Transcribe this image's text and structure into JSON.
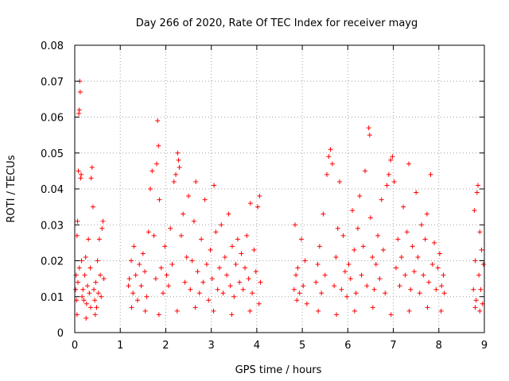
{
  "chart_data": {
    "type": "scatter",
    "title": "Day 266 of 2020, Rate Of TEC Index for receiver mayg",
    "xlabel": "GPS time / hours",
    "ylabel": "ROTI / TECUs",
    "xlim": [
      0,
      9
    ],
    "ylim": [
      0,
      0.08
    ],
    "x_ticks": [
      "0",
      "1",
      "2",
      "3",
      "4",
      "5",
      "6",
      "7",
      "8",
      "9"
    ],
    "y_ticks": [
      "0",
      "0.01",
      "0.02",
      "0.03",
      "0.04",
      "0.05",
      "0.06",
      "0.07",
      "0.08"
    ],
    "grid": true,
    "marker": "+",
    "color": "#ff0000",
    "series": [
      {
        "name": "ROTI",
        "points": [
          [
            0.02,
            0.012
          ],
          [
            0.03,
            0.016
          ],
          [
            0.04,
            0.009
          ],
          [
            0.05,
            0.027
          ],
          [
            0.06,
            0.031
          ],
          [
            0.07,
            0.014
          ],
          [
            0.08,
            0.045
          ],
          [
            0.09,
            0.061
          ],
          [
            0.1,
            0.062
          ],
          [
            0.11,
            0.07
          ],
          [
            0.12,
            0.067
          ],
          [
            0.13,
            0.043
          ],
          [
            0.14,
            0.044
          ],
          [
            0.15,
            0.02
          ],
          [
            0.16,
            0.01
          ],
          [
            0.18,
            0.012
          ],
          [
            0.2,
            0.009
          ],
          [
            0.22,
            0.016
          ],
          [
            0.24,
            0.021
          ],
          [
            0.26,
            0.008
          ],
          [
            0.28,
            0.013
          ],
          [
            0.3,
            0.026
          ],
          [
            0.32,
            0.011
          ],
          [
            0.34,
            0.018
          ],
          [
            0.36,
            0.043
          ],
          [
            0.38,
            0.046
          ],
          [
            0.4,
            0.035
          ],
          [
            0.42,
            0.012
          ],
          [
            0.44,
            0.009
          ],
          [
            0.46,
            0.014
          ],
          [
            0.48,
            0.007
          ],
          [
            0.5,
            0.02
          ],
          [
            0.52,
            0.011
          ],
          [
            0.54,
            0.026
          ],
          [
            0.56,
            0.016
          ],
          [
            0.58,
            0.01
          ],
          [
            0.6,
            0.029
          ],
          [
            0.62,
            0.031
          ],
          [
            0.64,
            0.015
          ],
          [
            0.05,
            0.005
          ],
          [
            0.1,
            0.018
          ],
          [
            0.25,
            0.004
          ],
          [
            0.35,
            0.007
          ],
          [
            0.45,
            0.005
          ],
          [
            1.18,
            0.013
          ],
          [
            1.2,
            0.015
          ],
          [
            1.24,
            0.02
          ],
          [
            1.28,
            0.011
          ],
          [
            1.3,
            0.024
          ],
          [
            1.34,
            0.016
          ],
          [
            1.38,
            0.009
          ],
          [
            1.42,
            0.019
          ],
          [
            1.46,
            0.013
          ],
          [
            1.5,
            0.022
          ],
          [
            1.54,
            0.017
          ],
          [
            1.58,
            0.01
          ],
          [
            1.62,
            0.028
          ],
          [
            1.66,
            0.04
          ],
          [
            1.7,
            0.045
          ],
          [
            1.74,
            0.027
          ],
          [
            1.78,
            0.015
          ],
          [
            1.8,
            0.047
          ],
          [
            1.82,
            0.059
          ],
          [
            1.84,
            0.052
          ],
          [
            1.86,
            0.037
          ],
          [
            1.9,
            0.018
          ],
          [
            1.94,
            0.011
          ],
          [
            1.98,
            0.024
          ],
          [
            2.02,
            0.016
          ],
          [
            2.06,
            0.013
          ],
          [
            2.1,
            0.029
          ],
          [
            2.14,
            0.019
          ],
          [
            2.18,
            0.042
          ],
          [
            2.22,
            0.044
          ],
          [
            2.26,
            0.05
          ],
          [
            2.28,
            0.048
          ],
          [
            2.3,
            0.046
          ],
          [
            2.34,
            0.027
          ],
          [
            2.38,
            0.033
          ],
          [
            2.42,
            0.014
          ],
          [
            2.46,
            0.021
          ],
          [
            2.5,
            0.038
          ],
          [
            2.54,
            0.012
          ],
          [
            2.58,
            0.02
          ],
          [
            2.62,
            0.031
          ],
          [
            2.66,
            0.042
          ],
          [
            2.7,
            0.017
          ],
          [
            2.74,
            0.011
          ],
          [
            2.78,
            0.026
          ],
          [
            2.82,
            0.014
          ],
          [
            2.86,
            0.037
          ],
          [
            2.9,
            0.019
          ],
          [
            2.94,
            0.009
          ],
          [
            2.98,
            0.023
          ],
          [
            3.02,
            0.015
          ],
          [
            3.06,
            0.041
          ],
          [
            3.1,
            0.028
          ],
          [
            3.14,
            0.012
          ],
          [
            3.18,
            0.018
          ],
          [
            3.22,
            0.03
          ],
          [
            3.26,
            0.011
          ],
          [
            3.3,
            0.021
          ],
          [
            3.34,
            0.016
          ],
          [
            3.38,
            0.033
          ],
          [
            3.42,
            0.013
          ],
          [
            3.46,
            0.024
          ],
          [
            3.5,
            0.01
          ],
          [
            3.54,
            0.019
          ],
          [
            3.58,
            0.026
          ],
          [
            3.62,
            0.014
          ],
          [
            3.66,
            0.022
          ],
          [
            3.7,
            0.012
          ],
          [
            3.74,
            0.018
          ],
          [
            3.78,
            0.027
          ],
          [
            3.82,
            0.015
          ],
          [
            3.86,
            0.036
          ],
          [
            3.9,
            0.011
          ],
          [
            3.94,
            0.023
          ],
          [
            3.98,
            0.017
          ],
          [
            4.02,
            0.035
          ],
          [
            4.06,
            0.038
          ],
          [
            4.08,
            0.014
          ],
          [
            1.25,
            0.007
          ],
          [
            1.55,
            0.006
          ],
          [
            1.85,
            0.005
          ],
          [
            2.25,
            0.006
          ],
          [
            2.65,
            0.007
          ],
          [
            3.05,
            0.006
          ],
          [
            3.45,
            0.005
          ],
          [
            3.85,
            0.006
          ],
          [
            4.05,
            0.008
          ],
          [
            4.82,
            0.012
          ],
          [
            4.84,
            0.03
          ],
          [
            4.86,
            0.016
          ],
          [
            4.88,
            0.009
          ],
          [
            4.9,
            0.018
          ],
          [
            4.94,
            0.011
          ],
          [
            4.98,
            0.026
          ],
          [
            5.02,
            0.013
          ],
          [
            5.06,
            0.02
          ],
          [
            5.1,
            0.008
          ],
          [
            5.3,
            0.014
          ],
          [
            5.34,
            0.019
          ],
          [
            5.38,
            0.024
          ],
          [
            5.42,
            0.011
          ],
          [
            5.46,
            0.033
          ],
          [
            5.5,
            0.016
          ],
          [
            5.54,
            0.044
          ],
          [
            5.58,
            0.049
          ],
          [
            5.62,
            0.051
          ],
          [
            5.66,
            0.047
          ],
          [
            5.7,
            0.013
          ],
          [
            5.74,
            0.021
          ],
          [
            5.78,
            0.029
          ],
          [
            5.82,
            0.042
          ],
          [
            5.86,
            0.012
          ],
          [
            5.9,
            0.027
          ],
          [
            5.94,
            0.017
          ],
          [
            5.98,
            0.01
          ],
          [
            6.02,
            0.019
          ],
          [
            6.06,
            0.015
          ],
          [
            6.1,
            0.034
          ],
          [
            6.14,
            0.023
          ],
          [
            6.18,
            0.011
          ],
          [
            6.22,
            0.029
          ],
          [
            6.26,
            0.038
          ],
          [
            6.3,
            0.016
          ],
          [
            6.34,
            0.024
          ],
          [
            6.38,
            0.045
          ],
          [
            6.42,
            0.013
          ],
          [
            6.46,
            0.057
          ],
          [
            6.48,
            0.055
          ],
          [
            6.5,
            0.032
          ],
          [
            6.54,
            0.021
          ],
          [
            6.58,
            0.012
          ],
          [
            6.62,
            0.019
          ],
          [
            6.66,
            0.027
          ],
          [
            6.7,
            0.015
          ],
          [
            6.74,
            0.037
          ],
          [
            6.78,
            0.023
          ],
          [
            6.82,
            0.011
          ],
          [
            6.86,
            0.041
          ],
          [
            6.9,
            0.044
          ],
          [
            6.94,
            0.048
          ],
          [
            6.98,
            0.049
          ],
          [
            7.02,
            0.042
          ],
          [
            7.06,
            0.018
          ],
          [
            7.1,
            0.026
          ],
          [
            7.14,
            0.013
          ],
          [
            7.18,
            0.021
          ],
          [
            7.22,
            0.035
          ],
          [
            7.26,
            0.016
          ],
          [
            7.3,
            0.028
          ],
          [
            7.34,
            0.047
          ],
          [
            7.38,
            0.012
          ],
          [
            7.42,
            0.024
          ],
          [
            7.46,
            0.017
          ],
          [
            7.5,
            0.039
          ],
          [
            7.54,
            0.021
          ],
          [
            7.58,
            0.011
          ],
          [
            7.62,
            0.03
          ],
          [
            7.66,
            0.016
          ],
          [
            7.7,
            0.026
          ],
          [
            7.74,
            0.033
          ],
          [
            7.78,
            0.014
          ],
          [
            7.82,
            0.044
          ],
          [
            7.86,
            0.019
          ],
          [
            7.9,
            0.025
          ],
          [
            7.94,
            0.012
          ],
          [
            7.98,
            0.018
          ],
          [
            8.02,
            0.022
          ],
          [
            8.06,
            0.013
          ],
          [
            8.1,
            0.016
          ],
          [
            8.12,
            0.011
          ],
          [
            5.35,
            0.006
          ],
          [
            5.75,
            0.005
          ],
          [
            6.15,
            0.006
          ],
          [
            6.55,
            0.007
          ],
          [
            6.95,
            0.005
          ],
          [
            7.35,
            0.006
          ],
          [
            7.75,
            0.007
          ],
          [
            8.05,
            0.006
          ],
          [
            8.76,
            0.012
          ],
          [
            8.78,
            0.034
          ],
          [
            8.8,
            0.02
          ],
          [
            8.82,
            0.009
          ],
          [
            8.84,
            0.039
          ],
          [
            8.86,
            0.041
          ],
          [
            8.88,
            0.016
          ],
          [
            8.9,
            0.028
          ],
          [
            8.92,
            0.012
          ],
          [
            8.94,
            0.023
          ],
          [
            8.96,
            0.008
          ],
          [
            8.98,
            0.019
          ],
          [
            8.8,
            0.007
          ],
          [
            8.9,
            0.006
          ]
        ]
      }
    ]
  }
}
